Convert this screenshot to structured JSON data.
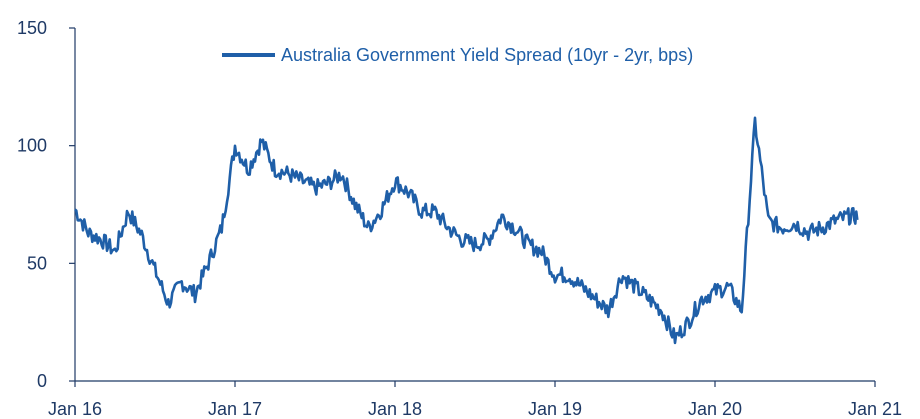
{
  "chart_data": {
    "type": "line",
    "title": "",
    "xlabel": "",
    "ylabel": "",
    "ylim": [
      0,
      150
    ],
    "xlim": [
      "2016-01",
      "2021-01"
    ],
    "yticks": [
      "0",
      "50",
      "100",
      "150"
    ],
    "xticks": [
      "Jan 16",
      "Jan 17",
      "Jan 18",
      "Jan 19",
      "Jan 20",
      "Jan 21"
    ],
    "legend_position": "top-right",
    "grid": false,
    "line_color": "#1f5fa8",
    "series": [
      {
        "name": "Australia Government Yield Spread (10yr - 2yr, bps)",
        "x": [
          "2016-01",
          "2016-02",
          "2016-03",
          "2016-04",
          "2016-05",
          "2016-06",
          "2016-07",
          "2016-08",
          "2016-09",
          "2016-10",
          "2016-11",
          "2016-12",
          "2017-01",
          "2017-02",
          "2017-03",
          "2017-04",
          "2017-05",
          "2017-06",
          "2017-07",
          "2017-08",
          "2017-09",
          "2017-10",
          "2017-11",
          "2017-12",
          "2018-01",
          "2018-02",
          "2018-03",
          "2018-04",
          "2018-05",
          "2018-06",
          "2018-07",
          "2018-08",
          "2018-09",
          "2018-10",
          "2018-11",
          "2018-12",
          "2019-01",
          "2019-02",
          "2019-03",
          "2019-04",
          "2019-05",
          "2019-06",
          "2019-07",
          "2019-08",
          "2019-09",
          "2019-10",
          "2019-11",
          "2019-12",
          "2020-01",
          "2020-02",
          "2020-03",
          "2020-04",
          "2020-05",
          "2020-06",
          "2020-07",
          "2020-08",
          "2020-09",
          "2020-10",
          "2020-11"
        ],
        "values": [
          73,
          63,
          60,
          55,
          72,
          62,
          47,
          33,
          42,
          37,
          50,
          65,
          100,
          90,
          102,
          90,
          88,
          85,
          82,
          84,
          88,
          75,
          65,
          73,
          85,
          80,
          72,
          72,
          65,
          60,
          58,
          60,
          70,
          65,
          58,
          55,
          45,
          45,
          40,
          35,
          30,
          45,
          40,
          35,
          30,
          18,
          25,
          35,
          38,
          40,
          30,
          110,
          68,
          65,
          67,
          63,
          65,
          68,
          70
        ]
      }
    ]
  }
}
